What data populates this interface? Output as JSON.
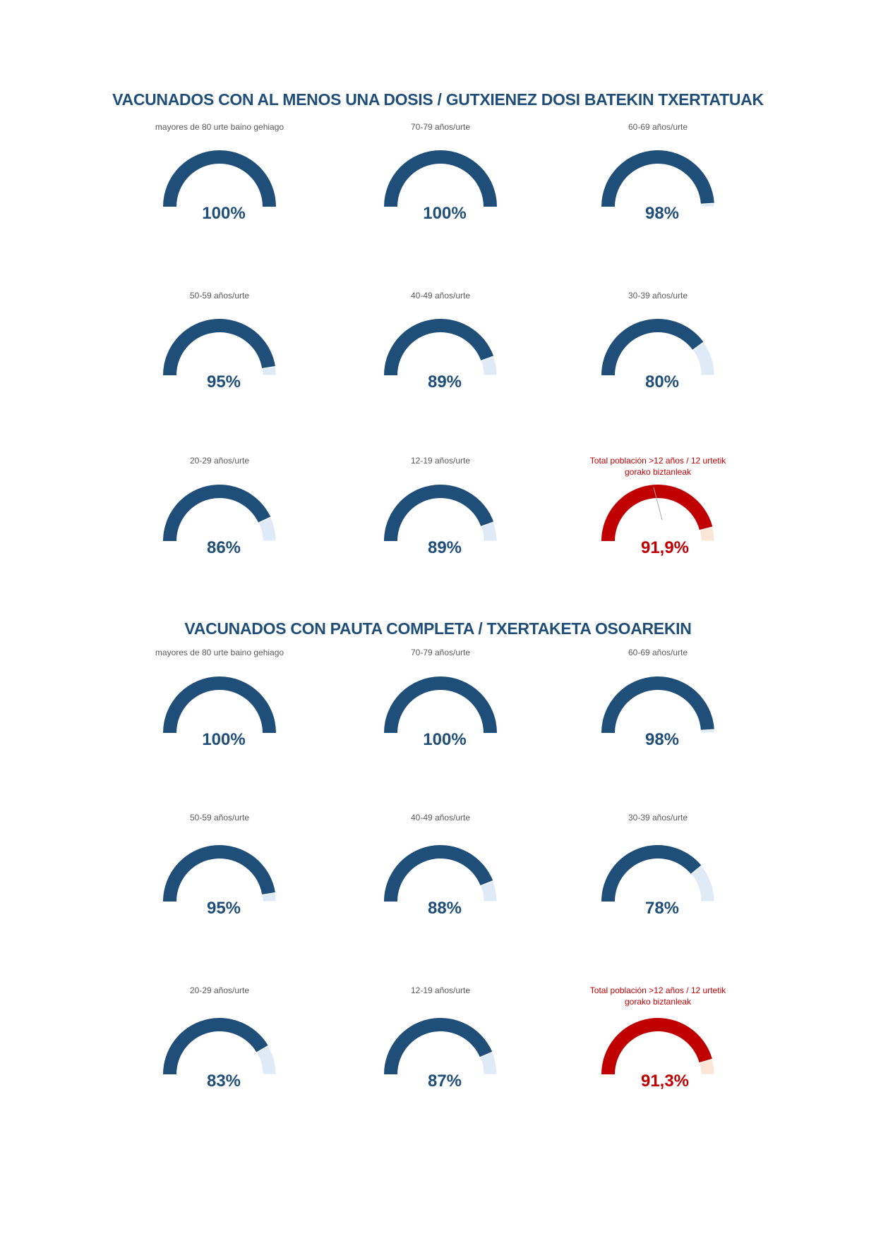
{
  "chart_data": [
    {
      "type": "gauge",
      "title": "VACUNADOS CON AL MENOS UNA DOSIS  / GUTXIENEZ DOSI BATEKIN TXERTATUAK",
      "unit": "%",
      "gauges": [
        {
          "label": "mayores de 80 urte baino gehiago",
          "value": 100,
          "display": "100%"
        },
        {
          "label": "70-79 años/urte",
          "value": 100,
          "display": "100%"
        },
        {
          "label": "60-69 años/urte",
          "value": 98,
          "display": "98%"
        },
        {
          "label": "50-59 años/urte",
          "value": 95,
          "display": "95%"
        },
        {
          "label": "40-49 años/urte",
          "value": 89,
          "display": "89%"
        },
        {
          "label": "30-39 años/urte",
          "value": 80,
          "display": "80%"
        },
        {
          "label": "20-29 años/urte",
          "value": 86,
          "display": "86%"
        },
        {
          "label": "12-19 años/urte",
          "value": 89,
          "display": "89%"
        },
        {
          "label": "Total población >12 años / 12 urtetik gorako biztanleak",
          "value": 91.9,
          "display": "91,9%",
          "highlight": true
        }
      ]
    },
    {
      "type": "gauge",
      "title": "VACUNADOS CON PAUTA COMPLETA  / TXERTAKETA OSOAREKIN",
      "unit": "%",
      "gauges": [
        {
          "label": "mayores de 80 urte baino gehiago",
          "value": 100,
          "display": "100%"
        },
        {
          "label": "70-79 años/urte",
          "value": 100,
          "display": "100%"
        },
        {
          "label": "60-69 años/urte",
          "value": 98,
          "display": "98%"
        },
        {
          "label": "50-59 años/urte",
          "value": 95,
          "display": "95%"
        },
        {
          "label": "40-49 años/urte",
          "value": 88,
          "display": "88%"
        },
        {
          "label": "30-39 años/urte",
          "value": 78,
          "display": "78%"
        },
        {
          "label": "20-29 años/urte",
          "value": 83,
          "display": "83%"
        },
        {
          "label": "12-19 años/urte",
          "value": 87,
          "display": "87%"
        },
        {
          "label": "Total población >12 años / 12 urtetik gorako biztanleak",
          "value": 91.3,
          "display": "91,3%",
          "highlight": true
        }
      ]
    }
  ],
  "colors": {
    "filled": "#1f4e79",
    "remainder": "#deebf7",
    "total_filled": "#c00000",
    "total_remainder": "#fbe5d6",
    "label": "#595959"
  }
}
